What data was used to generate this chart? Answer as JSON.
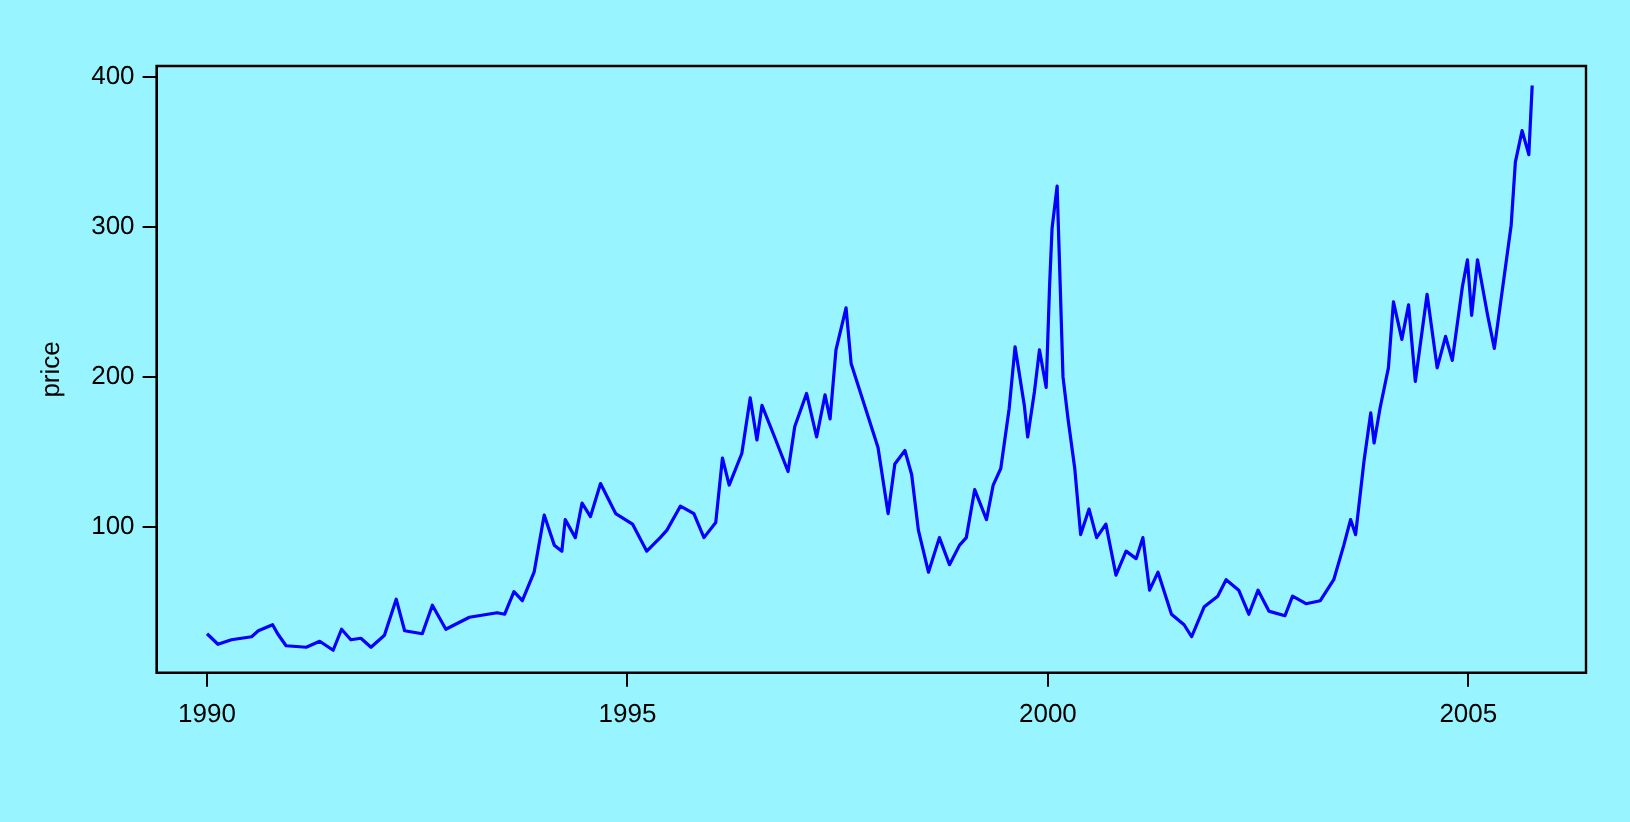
{
  "chart_data": {
    "type": "line",
    "ylabel": "price",
    "color": "#0000ff",
    "x": [
      1990.0,
      1990.13,
      1990.29,
      1990.53,
      1990.61,
      1990.78,
      1990.84,
      1990.94,
      1991.18,
      1991.34,
      1991.5,
      1991.6,
      1991.71,
      1991.83,
      1991.95,
      1992.11,
      1992.25,
      1992.35,
      1992.56,
      1992.68,
      1992.84,
      1993.12,
      1993.45,
      1993.54,
      1993.65,
      1993.75,
      1993.89,
      1994.01,
      1994.13,
      1994.22,
      1994.26,
      1994.38,
      1994.46,
      1994.56,
      1994.68,
      1994.86,
      1995.06,
      1995.23,
      1995.39,
      1995.47,
      1995.63,
      1995.79,
      1995.91,
      1996.05,
      1996.13,
      1996.21,
      1996.36,
      1996.46,
      1996.54,
      1996.6,
      1996.75,
      1996.91,
      1996.99,
      1997.13,
      1997.25,
      1997.35,
      1997.41,
      1997.48,
      1997.6,
      1997.66,
      1997.82,
      1997.98,
      1998.1,
      1998.18,
      1998.3,
      1998.38,
      1998.46,
      1998.58,
      1998.71,
      1998.83,
      1998.95,
      1999.03,
      1999.13,
      1999.27,
      1999.35,
      1999.44,
      1999.54,
      1999.61,
      1999.72,
      1999.76,
      1999.84,
      1999.9,
      1999.98,
      2000.02,
      2000.05,
      2000.11,
      2000.15,
      2000.18,
      2000.24,
      2000.32,
      2000.39,
      2000.49,
      2000.58,
      2000.69,
      2000.81,
      2000.93,
      2001.05,
      2001.13,
      2001.21,
      2001.31,
      2001.47,
      2001.62,
      2001.71,
      2001.86,
      2002.02,
      2002.12,
      2002.27,
      2002.39,
      2002.5,
      2002.63,
      2002.82,
      2002.91,
      2003.07,
      2003.24,
      2003.4,
      2003.52,
      2003.6,
      2003.66,
      2003.76,
      2003.84,
      2003.88,
      2003.95,
      2004.05,
      2004.11,
      2004.21,
      2004.29,
      2004.37,
      2004.51,
      2004.63,
      2004.73,
      2004.81,
      2004.93,
      2004.99,
      2005.04,
      2005.11,
      2005.23,
      2005.31,
      2005.42,
      2005.51,
      2005.56,
      2005.64,
      2005.72,
      2005.76
    ],
    "values": [
      29,
      22,
      25,
      27,
      31,
      35,
      29,
      21,
      20,
      24,
      18,
      32,
      25,
      26,
      20,
      28,
      52,
      31,
      29,
      48,
      32,
      40,
      43,
      42,
      57,
      51,
      70,
      108,
      88,
      84,
      105,
      93,
      116,
      107,
      129,
      109,
      102,
      84,
      93,
      98,
      114,
      109,
      93,
      103,
      146,
      128,
      149,
      186,
      158,
      181,
      160,
      137,
      167,
      189,
      160,
      188,
      172,
      218,
      246,
      209,
      181,
      153,
      109,
      142,
      151,
      135,
      98,
      70,
      93,
      75,
      88,
      93,
      125,
      105,
      128,
      139,
      179,
      220,
      181,
      160,
      190,
      218,
      193,
      260,
      299,
      327,
      255,
      200,
      172,
      139,
      95,
      112,
      93,
      102,
      68,
      84,
      79,
      93,
      58,
      70,
      42,
      35,
      27,
      47,
      54,
      65,
      58,
      42,
      58,
      44,
      41,
      54,
      49,
      51,
      65,
      88,
      105,
      95,
      144,
      176,
      156,
      179,
      206,
      250,
      225,
      248,
      197,
      255,
      206,
      227,
      211,
      260,
      278,
      241,
      278,
      241,
      219,
      264,
      301,
      343,
      364,
      348,
      394
    ],
    "xlim": [
      1989.4,
      2006.4
    ],
    "ylim": [
      3,
      407
    ],
    "xticks": [
      1990,
      1995,
      2000,
      2005
    ],
    "yticks": [
      100,
      200,
      300,
      400
    ],
    "grid": false,
    "legend": false,
    "marker": "none",
    "line_style": "solid"
  }
}
